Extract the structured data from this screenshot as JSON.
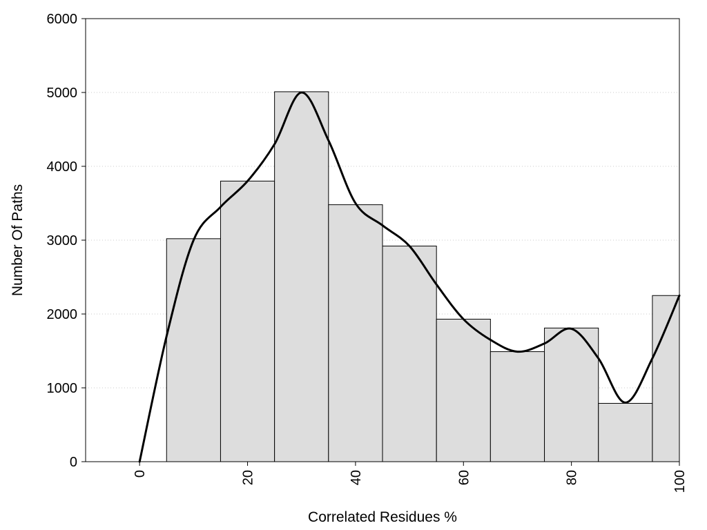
{
  "chart_data": {
    "type": "bar",
    "title": "",
    "xlabel": "Correlated Residues %",
    "ylabel": "Number Of Paths",
    "xlim": [
      -10,
      100
    ],
    "ylim": [
      0,
      6000
    ],
    "x_ticks": [
      0,
      20,
      40,
      60,
      80,
      100
    ],
    "y_ticks": [
      0,
      1000,
      2000,
      3000,
      4000,
      5000,
      6000
    ],
    "grid": "horizontal dotted",
    "bars": {
      "bin_width": 10,
      "x": [
        10,
        20,
        30,
        40,
        50,
        60,
        70,
        80,
        90,
        100
      ],
      "values": [
        3020,
        3800,
        5010,
        3480,
        2920,
        1930,
        1490,
        1810,
        790,
        2250
      ],
      "fill": "#dddddd",
      "edge": "#000000"
    },
    "curve": {
      "color": "#000000",
      "points": [
        [
          0,
          0
        ],
        [
          5,
          1700
        ],
        [
          10,
          3000
        ],
        [
          15,
          3450
        ],
        [
          20,
          3800
        ],
        [
          25,
          4300
        ],
        [
          30,
          5000
        ],
        [
          35,
          4350
        ],
        [
          40,
          3500
        ],
        [
          45,
          3200
        ],
        [
          50,
          2920
        ],
        [
          55,
          2400
        ],
        [
          60,
          1930
        ],
        [
          65,
          1650
        ],
        [
          70,
          1490
        ],
        [
          75,
          1600
        ],
        [
          80,
          1800
        ],
        [
          85,
          1400
        ],
        [
          90,
          800
        ],
        [
          95,
          1400
        ],
        [
          100,
          2250
        ]
      ]
    }
  }
}
